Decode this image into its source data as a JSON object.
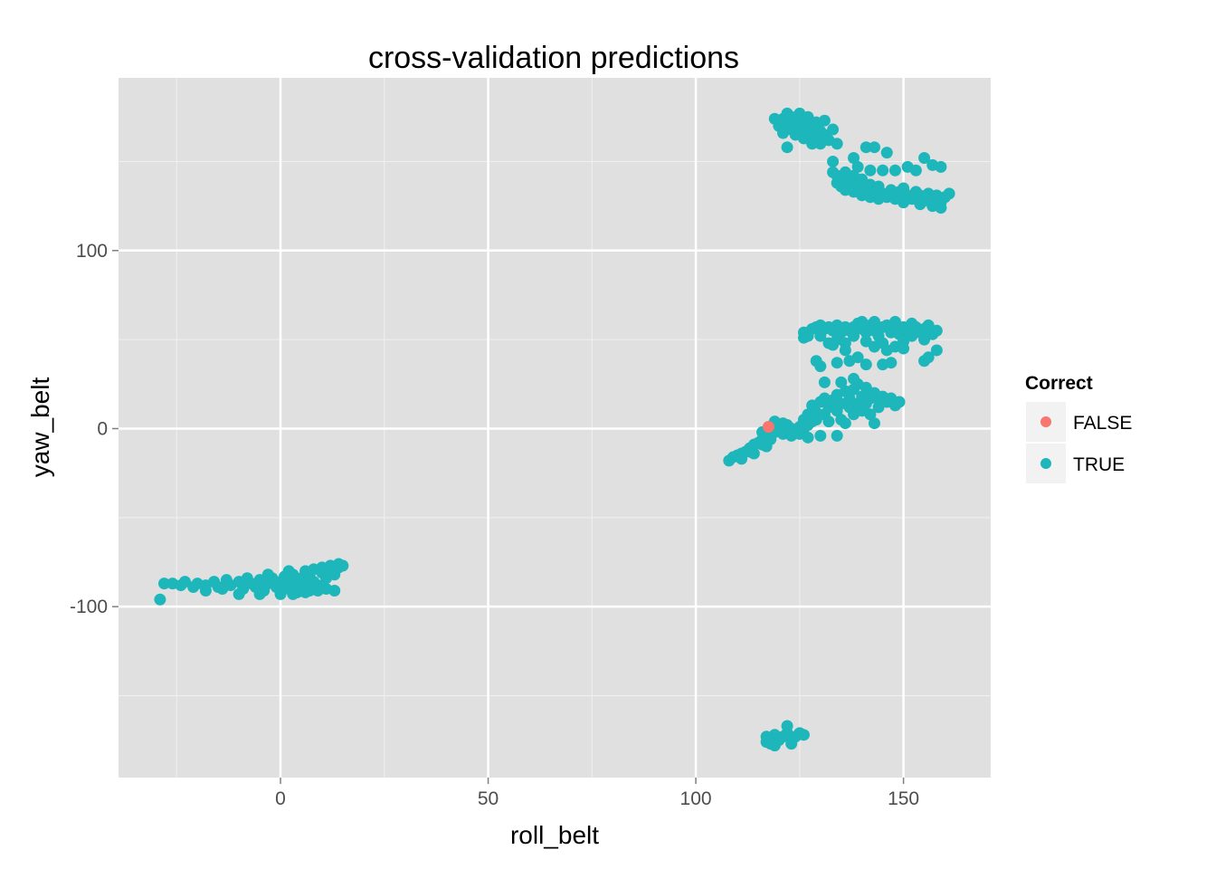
{
  "chart_data": {
    "type": "scatter",
    "title": "cross-validation predictions",
    "xlabel": "roll_belt",
    "ylabel": "yaw_belt",
    "xlim": [
      -39,
      171
    ],
    "ylim": [
      -196,
      197
    ],
    "x_ticks": [
      0,
      50,
      100,
      150
    ],
    "x_tick_labels": [
      "0",
      "50",
      "100",
      "150"
    ],
    "y_ticks": [
      -100,
      0,
      100
    ],
    "y_tick_labels": [
      "-100",
      "0",
      "100"
    ],
    "grid": true,
    "background": "#e0e0e0",
    "legend": {
      "title": "Correct",
      "placement": "right",
      "entries": [
        {
          "label": "FALSE",
          "color": "#F8766D"
        },
        {
          "label": "TRUE",
          "color": "#1DB6BA"
        }
      ]
    },
    "series": [
      {
        "name": "TRUE",
        "color": "#1DB6BA",
        "points": [
          [
            -29,
            -96
          ],
          [
            -28,
            -87
          ],
          [
            -26,
            -87
          ],
          [
            -24,
            -88
          ],
          [
            -23,
            -86
          ],
          [
            -21,
            -89
          ],
          [
            -20,
            -87
          ],
          [
            -18,
            -88
          ],
          [
            -16,
            -86
          ],
          [
            -15,
            -89
          ],
          [
            -13,
            -85
          ],
          [
            -12,
            -88
          ],
          [
            -10,
            -86
          ],
          [
            -9,
            -90
          ],
          [
            -8,
            -84
          ],
          [
            -7,
            -87
          ],
          [
            -6,
            -89
          ],
          [
            -5,
            -85
          ],
          [
            -4,
            -91
          ],
          [
            -3,
            -87
          ],
          [
            -2,
            -84
          ],
          [
            -1,
            -89
          ],
          [
            0,
            -86
          ],
          [
            0,
            -92
          ],
          [
            1,
            -83
          ],
          [
            1,
            -88
          ],
          [
            2,
            -90
          ],
          [
            3,
            -85
          ],
          [
            3,
            -82
          ],
          [
            4,
            -88
          ],
          [
            4,
            -92
          ],
          [
            5,
            -84
          ],
          [
            6,
            -80
          ],
          [
            6,
            -87
          ],
          [
            7,
            -91
          ],
          [
            7,
            -83
          ],
          [
            8,
            -79
          ],
          [
            8,
            -86
          ],
          [
            9,
            -91
          ],
          [
            10,
            -81
          ],
          [
            10,
            -78
          ],
          [
            11,
            -84
          ],
          [
            11,
            -90
          ],
          [
            12,
            -79
          ],
          [
            12,
            -77
          ],
          [
            13,
            -82
          ],
          [
            14,
            -78
          ],
          [
            14,
            -76
          ],
          [
            15,
            -77
          ],
          [
            13,
            -91
          ],
          [
            -10,
            -93
          ],
          [
            -5,
            -93
          ],
          [
            0,
            -93
          ],
          [
            3,
            -93
          ],
          [
            6,
            -92
          ],
          [
            -14,
            -90
          ],
          [
            -18,
            -91
          ],
          [
            2,
            -80
          ],
          [
            -3,
            -82
          ],
          [
            9,
            -88
          ],
          [
            108,
            -18
          ],
          [
            109,
            -16
          ],
          [
            110,
            -15
          ],
          [
            111,
            -14
          ],
          [
            112,
            -13
          ],
          [
            113,
            -11
          ],
          [
            113,
            -13
          ],
          [
            114,
            -9
          ],
          [
            115,
            -8
          ],
          [
            116,
            -6
          ],
          [
            116,
            -9
          ],
          [
            117,
            -4
          ],
          [
            118,
            -3
          ],
          [
            118,
            -6
          ],
          [
            119,
            0
          ],
          [
            119,
            -2
          ],
          [
            120,
            2
          ],
          [
            120,
            -1
          ],
          [
            121,
            3
          ],
          [
            121,
            -3
          ],
          [
            122,
            -1
          ],
          [
            122,
            2
          ],
          [
            123,
            0
          ],
          [
            123,
            -4
          ],
          [
            124,
            -2
          ],
          [
            125,
            1
          ],
          [
            125,
            -3
          ],
          [
            126,
            0
          ],
          [
            127,
            2
          ],
          [
            111,
            -17
          ],
          [
            114,
            -14
          ],
          [
            117,
            -10
          ],
          [
            116,
            -2
          ],
          [
            119,
            4
          ],
          [
            126,
            5
          ],
          [
            127,
            8
          ],
          [
            128,
            4
          ],
          [
            128,
            13
          ],
          [
            129,
            9
          ],
          [
            129,
            5
          ],
          [
            130,
            15
          ],
          [
            131,
            8
          ],
          [
            131,
            17
          ],
          [
            132,
            12
          ],
          [
            132,
            4
          ],
          [
            133,
            16
          ],
          [
            134,
            10
          ],
          [
            134,
            19
          ],
          [
            135,
            5
          ],
          [
            135,
            14
          ],
          [
            136,
            3
          ],
          [
            136,
            21
          ],
          [
            137,
            12
          ],
          [
            137,
            17
          ],
          [
            138,
            22
          ],
          [
            138,
            8
          ],
          [
            139,
            14
          ],
          [
            139,
            25
          ],
          [
            140,
            18
          ],
          [
            140,
            10
          ],
          [
            141,
            23
          ],
          [
            141,
            14
          ],
          [
            142,
            17
          ],
          [
            142,
            8
          ],
          [
            143,
            20
          ],
          [
            144,
            16
          ],
          [
            144,
            12
          ],
          [
            145,
            18
          ],
          [
            146,
            15
          ],
          [
            147,
            17
          ],
          [
            148,
            13
          ],
          [
            149,
            15
          ],
          [
            143,
            3
          ],
          [
            130,
            -4
          ],
          [
            134,
            -4
          ],
          [
            127,
            -5
          ],
          [
            131,
            26
          ],
          [
            135,
            26
          ],
          [
            138,
            28
          ],
          [
            130,
            35
          ],
          [
            134,
            37
          ],
          [
            137,
            38
          ],
          [
            129,
            38
          ],
          [
            126,
            51
          ],
          [
            126,
            54
          ],
          [
            127,
            52
          ],
          [
            128,
            56
          ],
          [
            129,
            57
          ],
          [
            130,
            58
          ],
          [
            130,
            52
          ],
          [
            131,
            56
          ],
          [
            132,
            57
          ],
          [
            132,
            48
          ],
          [
            133,
            55
          ],
          [
            134,
            58
          ],
          [
            134,
            50
          ],
          [
            135,
            54
          ],
          [
            136,
            57
          ],
          [
            136,
            48
          ],
          [
            137,
            55
          ],
          [
            138,
            57
          ],
          [
            138,
            52
          ],
          [
            139,
            59
          ],
          [
            140,
            56
          ],
          [
            140,
            60
          ],
          [
            141,
            54
          ],
          [
            141,
            49
          ],
          [
            142,
            58
          ],
          [
            143,
            55
          ],
          [
            143,
            60
          ],
          [
            144,
            52
          ],
          [
            145,
            57
          ],
          [
            145,
            48
          ],
          [
            146,
            58
          ],
          [
            147,
            54
          ],
          [
            148,
            56
          ],
          [
            148,
            60
          ],
          [
            149,
            53
          ],
          [
            150,
            57
          ],
          [
            150,
            49
          ],
          [
            151,
            55
          ],
          [
            152,
            59
          ],
          [
            152,
            52
          ],
          [
            153,
            57
          ],
          [
            154,
            54
          ],
          [
            155,
            56
          ],
          [
            155,
            50
          ],
          [
            156,
            58
          ],
          [
            157,
            53
          ],
          [
            158,
            55
          ],
          [
            158,
            44
          ],
          [
            155,
            38
          ],
          [
            156,
            40
          ],
          [
            143,
            46
          ],
          [
            146,
            44
          ],
          [
            148,
            46
          ],
          [
            141,
            36
          ],
          [
            145,
            36
          ],
          [
            139,
            40
          ],
          [
            136,
            44
          ],
          [
            133,
            47
          ],
          [
            147,
            37
          ],
          [
            150,
            45
          ],
          [
            121,
            174
          ],
          [
            122,
            170
          ],
          [
            122,
            177
          ],
          [
            123,
            168
          ],
          [
            123,
            175
          ],
          [
            124,
            165
          ],
          [
            124,
            172
          ],
          [
            125,
            177
          ],
          [
            125,
            168
          ],
          [
            126,
            163
          ],
          [
            126,
            172
          ],
          [
            127,
            167
          ],
          [
            127,
            175
          ],
          [
            128,
            162
          ],
          [
            128,
            169
          ],
          [
            129,
            172
          ],
          [
            129,
            164
          ],
          [
            130,
            160
          ],
          [
            130,
            167
          ],
          [
            131,
            173
          ],
          [
            131,
            165
          ],
          [
            132,
            162
          ],
          [
            133,
            168
          ],
          [
            134,
            160
          ],
          [
            120,
            170
          ],
          [
            119,
            174
          ],
          [
            121,
            166
          ],
          [
            122,
            158
          ],
          [
            128,
            160
          ],
          [
            133,
            150
          ],
          [
            133,
            144
          ],
          [
            134,
            138
          ],
          [
            134,
            142
          ],
          [
            135,
            136
          ],
          [
            136,
            140
          ],
          [
            136,
            134
          ],
          [
            137,
            138
          ],
          [
            138,
            142
          ],
          [
            138,
            133
          ],
          [
            139,
            137
          ],
          [
            140,
            131
          ],
          [
            140,
            140
          ],
          [
            141,
            135
          ],
          [
            142,
            130
          ],
          [
            142,
            137
          ],
          [
            143,
            133
          ],
          [
            144,
            129
          ],
          [
            144,
            136
          ],
          [
            145,
            132
          ],
          [
            146,
            130
          ],
          [
            147,
            134
          ],
          [
            148,
            129
          ],
          [
            149,
            133
          ],
          [
            150,
            127
          ],
          [
            150,
            135
          ],
          [
            151,
            131
          ],
          [
            152,
            129
          ],
          [
            153,
            133
          ],
          [
            154,
            126
          ],
          [
            154,
            131
          ],
          [
            155,
            128
          ],
          [
            156,
            132
          ],
          [
            157,
            125
          ],
          [
            157,
            129
          ],
          [
            158,
            131
          ],
          [
            159,
            127
          ],
          [
            160,
            130
          ],
          [
            161,
            132
          ],
          [
            159,
            124
          ],
          [
            155,
            152
          ],
          [
            157,
            148
          ],
          [
            159,
            147
          ],
          [
            151,
            147
          ],
          [
            153,
            145
          ],
          [
            148,
            145
          ],
          [
            145,
            145
          ],
          [
            142,
            145
          ],
          [
            139,
            147
          ],
          [
            141,
            158
          ],
          [
            143,
            158
          ],
          [
            146,
            155
          ],
          [
            136,
            144
          ],
          [
            138,
            152
          ],
          [
            117,
            -176
          ],
          [
            118,
            -174
          ],
          [
            118,
            -177
          ],
          [
            119,
            -172
          ],
          [
            120,
            -175
          ],
          [
            121,
            -173
          ],
          [
            122,
            -171
          ],
          [
            122,
            -167
          ],
          [
            123,
            -177
          ],
          [
            124,
            -173
          ],
          [
            125,
            -171
          ],
          [
            126,
            -172
          ],
          [
            117,
            -173
          ],
          [
            119,
            -178
          ]
        ]
      },
      {
        "name": "FALSE",
        "color": "#F8766D",
        "points": [
          [
            117.5,
            1
          ]
        ]
      }
    ]
  }
}
